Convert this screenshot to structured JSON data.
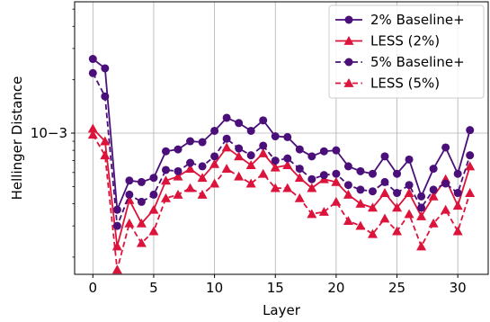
{
  "chart_data": {
    "type": "line",
    "xlabel": "Layer",
    "ylabel": "Hellinger Distance",
    "yscale": "log",
    "xlim": [
      -1.5,
      32.5
    ],
    "ylim": [
      0.00016,
      0.0055
    ],
    "x_ticks": [
      0,
      5,
      10,
      15,
      20,
      25,
      30
    ],
    "y_ticks": [
      {
        "value": 0.001,
        "label": "10−3"
      }
    ],
    "grid": true,
    "legend_position": "top-right",
    "x": [
      0,
      1,
      2,
      3,
      4,
      5,
      6,
      7,
      8,
      9,
      10,
      11,
      12,
      13,
      14,
      15,
      16,
      17,
      18,
      19,
      20,
      21,
      22,
      23,
      24,
      25,
      26,
      27,
      28,
      29,
      30,
      31
    ],
    "series": [
      {
        "name": "2% Baseline+",
        "color": "#4b0f7a",
        "linestyle": "solid",
        "marker": "circle",
        "values": [
          0.00262,
          0.00232,
          0.00037,
          0.00054,
          0.00053,
          0.00056,
          0.00079,
          0.00081,
          0.0009,
          0.00089,
          0.00103,
          0.00122,
          0.00114,
          0.00103,
          0.00118,
          0.00096,
          0.00095,
          0.00081,
          0.00074,
          0.00079,
          0.0008,
          0.00065,
          0.00061,
          0.00059,
          0.00074,
          0.00059,
          0.00071,
          0.00044,
          0.00063,
          0.00083,
          0.00059,
          0.00104
        ]
      },
      {
        "name": "LESS (2%)",
        "color": "#dc143c",
        "linestyle": "solid",
        "marker": "triangle",
        "values": [
          0.00106,
          0.0009,
          0.00023,
          0.00042,
          0.00031,
          0.00037,
          0.00054,
          0.00057,
          0.00063,
          0.00056,
          0.00067,
          0.00083,
          0.00074,
          0.00066,
          0.00077,
          0.00064,
          0.00066,
          0.00056,
          0.00049,
          0.00055,
          0.00053,
          0.00045,
          0.0004,
          0.00038,
          0.00046,
          0.00038,
          0.00046,
          0.00034,
          0.00044,
          0.00055,
          0.00039,
          0.00065
        ]
      },
      {
        "name": "5% Baseline+",
        "color": "#4b0f7a",
        "linestyle": "dashed",
        "marker": "circle",
        "values": [
          0.00218,
          0.00161,
          0.0003,
          0.00045,
          0.00041,
          0.00045,
          0.00062,
          0.00061,
          0.00068,
          0.00065,
          0.00074,
          0.00093,
          0.00082,
          0.00075,
          0.00085,
          0.0007,
          0.00072,
          0.00063,
          0.00055,
          0.00058,
          0.00059,
          0.00051,
          0.00048,
          0.00047,
          0.00053,
          0.00046,
          0.00051,
          0.00038,
          0.00048,
          0.00052,
          0.00046,
          0.00075
        ]
      },
      {
        "name": "LESS (5%)",
        "color": "#dc143c",
        "linestyle": "dashed",
        "marker": "triangle",
        "values": [
          0.00098,
          0.00075,
          0.00017,
          0.00031,
          0.00024,
          0.00028,
          0.00043,
          0.00045,
          0.00049,
          0.00045,
          0.00052,
          0.00063,
          0.00057,
          0.00052,
          0.00059,
          0.00049,
          0.00049,
          0.00043,
          0.00035,
          0.00036,
          0.00041,
          0.00032,
          0.0003,
          0.00027,
          0.00033,
          0.00028,
          0.00035,
          0.00023,
          0.00031,
          0.00037,
          0.00028,
          0.00046
        ]
      }
    ]
  }
}
